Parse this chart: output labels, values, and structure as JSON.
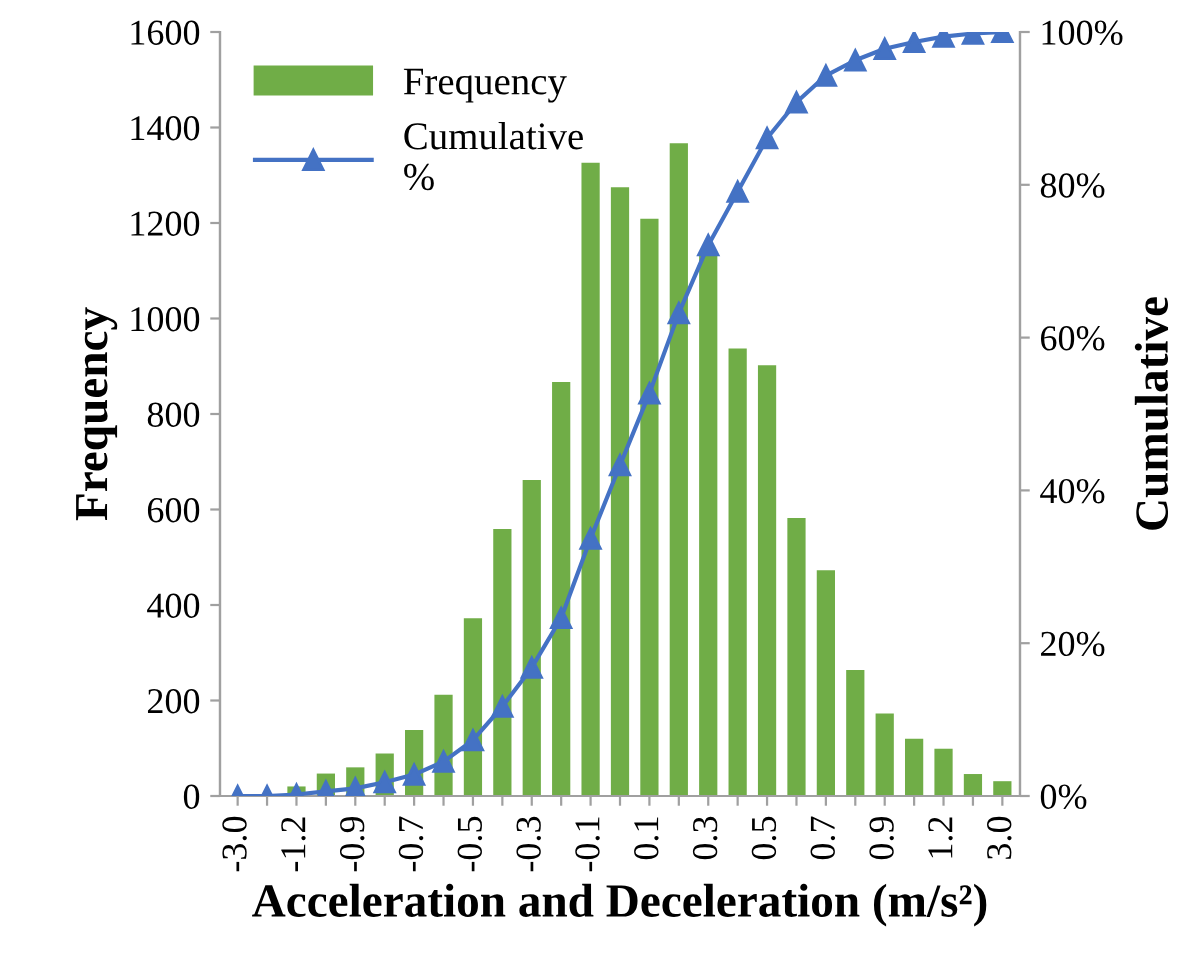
{
  "chart_data": {
    "type": "bar",
    "xlabel": "Acceleration and Deceleration (m/s²)",
    "ylabel": "Frequency",
    "y2label": "Cumulative",
    "categories": [
      "-3.0",
      null,
      "-1.2",
      null,
      "-0.9",
      null,
      "-0.7",
      null,
      "-0.5",
      null,
      "-0.3",
      null,
      "-0.1",
      null,
      "0.1",
      null,
      "0.3",
      null,
      "0.5",
      null,
      "0.7",
      null,
      "0.9",
      null,
      "1.2",
      null,
      "3.0"
    ],
    "series": [
      {
        "name": "Frequency",
        "color": "#70ad47",
        "values": [
          null,
          null,
          20,
          47,
          60,
          89,
          138,
          212,
          372,
          559,
          662,
          867,
          1326,
          1275,
          1209,
          1367,
          1136,
          937,
          902,
          582,
          473,
          264,
          173,
          120,
          99,
          46,
          31
        ]
      },
      {
        "name": "Cumulative\n%",
        "type": "line",
        "axis": "y2",
        "color": "#4472c4",
        "marker": "triangle",
        "values": [
          0,
          0,
          0.2,
          0.6,
          1.0,
          1.8,
          2.8,
          4.5,
          7.3,
          11.7,
          16.8,
          23.3,
          33.7,
          43.3,
          52.7,
          63.2,
          72.1,
          79.1,
          86.1,
          90.8,
          94.3,
          96.3,
          97.8,
          98.7,
          99.4,
          99.8,
          100
        ]
      }
    ],
    "ylim": [
      0,
      1600
    ],
    "yticks": [
      0,
      200,
      400,
      600,
      800,
      1000,
      1200,
      1400,
      1600
    ],
    "y2lim": [
      0,
      100
    ],
    "y2ticks": [
      {
        "value": 0,
        "label": "0%"
      },
      {
        "value": 20,
        "label": "20%"
      },
      {
        "value": 40,
        "label": "40%"
      },
      {
        "value": 60,
        "label": "60%"
      },
      {
        "value": 80,
        "label": "80%"
      },
      {
        "value": 100,
        "label": "100%"
      }
    ],
    "grid": false,
    "legend": "top left"
  }
}
